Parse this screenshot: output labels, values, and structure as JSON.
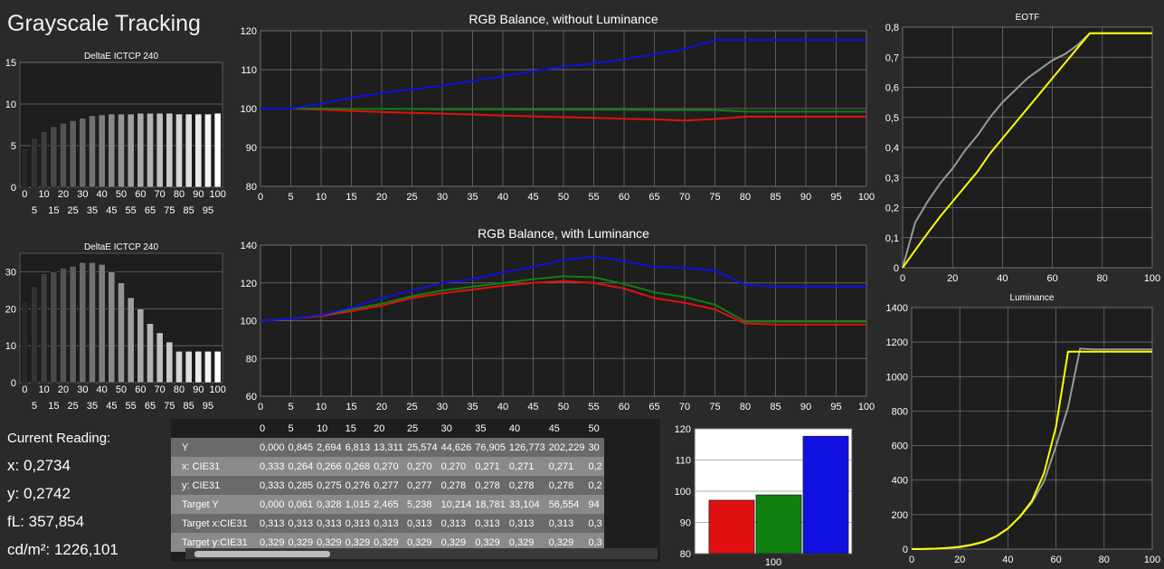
{
  "title": "Grayscale Tracking",
  "current": {
    "heading": "Current Reading:",
    "x": "x: 0,2734",
    "y": "y: 0,2742",
    "fl": "fL: 357,854",
    "cdm2": "cd/m²: 1226,101"
  },
  "colors": {
    "red": "#e01010",
    "green": "#108010",
    "blue": "#1010e0",
    "yellow": "#ffff00",
    "gray": "#9a9a9a",
    "panel": "#1e1e1e",
    "grid": "#777777"
  },
  "x_ticks": [
    "0",
    "5",
    "10",
    "15",
    "20",
    "25",
    "30",
    "35",
    "40",
    "45",
    "50",
    "55",
    "60",
    "65",
    "70",
    "75",
    "80",
    "85",
    "90",
    "95",
    "100"
  ],
  "charts": [
    {
      "id": "deltae1",
      "type": "bar",
      "title": "DeltaE ICTCP 240",
      "categories": [
        0,
        5,
        10,
        15,
        20,
        25,
        30,
        35,
        40,
        45,
        50,
        55,
        60,
        65,
        70,
        75,
        80,
        85,
        90,
        95,
        100
      ],
      "values": [
        4.7,
        5.9,
        6.7,
        7.3,
        7.7,
        8.0,
        8.3,
        8.6,
        8.7,
        8.8,
        8.8,
        8.8,
        8.9,
        8.9,
        8.9,
        8.9,
        8.8,
        8.8,
        8.8,
        8.8,
        8.9
      ],
      "ylim": [
        0,
        15
      ],
      "yticks": [
        0,
        5,
        10,
        15
      ],
      "xticks_top": [
        "0",
        "10",
        "20",
        "30",
        "40",
        "50",
        "60",
        "70",
        "80",
        "90",
        "100"
      ],
      "xticks_bottom": [
        "5",
        "15",
        "25",
        "35",
        "45",
        "55",
        "65",
        "75",
        "85",
        "95"
      ]
    },
    {
      "id": "deltae2",
      "type": "bar",
      "title": "DeltaE ICTCP 240",
      "categories": [
        0,
        5,
        10,
        15,
        20,
        25,
        30,
        35,
        40,
        45,
        50,
        55,
        60,
        65,
        70,
        75,
        80,
        85,
        90,
        95,
        100
      ],
      "values": [
        22,
        26,
        29.5,
        30,
        31,
        31.5,
        32.5,
        32.5,
        32,
        30,
        27,
        23,
        20,
        16,
        13.5,
        11,
        8.5,
        8.5,
        8.5,
        8.5,
        8.5
      ],
      "ylim": [
        0,
        35
      ],
      "yticks": [
        0,
        10,
        20,
        30
      ],
      "xticks_top": [
        "0",
        "10",
        "20",
        "30",
        "40",
        "50",
        "60",
        "70",
        "80",
        "90",
        "100"
      ],
      "xticks_bottom": [
        "5",
        "15",
        "25",
        "35",
        "45",
        "55",
        "65",
        "75",
        "85",
        "95"
      ]
    },
    {
      "id": "rgb-no-lum",
      "type": "line",
      "title": "RGB Balance, without Luminance",
      "x": [
        0,
        5,
        10,
        15,
        20,
        25,
        30,
        35,
        40,
        45,
        50,
        55,
        60,
        65,
        70,
        75,
        80,
        85,
        90,
        95,
        100
      ],
      "ylim": [
        80,
        120
      ],
      "yticks": [
        80,
        90,
        100,
        110,
        120
      ],
      "series": [
        {
          "color": "red",
          "values": [
            100,
            100,
            99.7,
            99.4,
            99.1,
            98.9,
            98.7,
            98.5,
            98.2,
            98.0,
            97.8,
            97.6,
            97.4,
            97.2,
            96.9,
            97.3,
            97.9,
            97.9,
            97.9,
            97.9,
            97.9
          ]
        },
        {
          "color": "green",
          "values": [
            100,
            100,
            100,
            99.9,
            99.9,
            99.9,
            99.8,
            99.8,
            99.8,
            99.7,
            99.7,
            99.7,
            99.7,
            99.6,
            99.6,
            99.6,
            99.2,
            99.2,
            99.2,
            99.2,
            99.2
          ]
        },
        {
          "color": "blue",
          "values": [
            100,
            100,
            101.2,
            102.8,
            104.0,
            104.9,
            105.9,
            107.1,
            108.3,
            109.6,
            110.8,
            111.6,
            112.7,
            113.9,
            115.3,
            117.6,
            117.6,
            117.6,
            117.6,
            117.6,
            117.6
          ]
        }
      ]
    },
    {
      "id": "rgb-lum",
      "type": "line",
      "title": "RGB Balance, with Luminance",
      "x": [
        0,
        5,
        10,
        15,
        20,
        25,
        30,
        35,
        40,
        45,
        50,
        55,
        60,
        65,
        70,
        75,
        80,
        85,
        90,
        95,
        100
      ],
      "ylim": [
        60,
        140
      ],
      "yticks": [
        60,
        80,
        100,
        120,
        140
      ],
      "series": [
        {
          "color": "red",
          "values": [
            100,
            101,
            102.5,
            105,
            108,
            112,
            114.5,
            116.5,
            118.5,
            120,
            121,
            120,
            117,
            112,
            109.5,
            106,
            98.5,
            98,
            98,
            98,
            98
          ]
        },
        {
          "color": "green",
          "values": [
            100,
            101,
            103,
            106,
            109,
            113,
            116,
            118,
            120,
            122,
            123.5,
            123,
            119.5,
            115,
            112.5,
            108.5,
            99.5,
            99.5,
            99.5,
            99.5,
            99.5
          ]
        },
        {
          "color": "blue",
          "values": [
            100,
            101,
            103,
            107,
            112,
            116,
            120,
            122,
            125.5,
            128.5,
            132,
            134,
            131.5,
            128.5,
            128,
            126.5,
            119,
            118,
            118,
            118,
            118
          ]
        }
      ]
    },
    {
      "id": "eotf",
      "type": "line",
      "title": "EOTF",
      "x": [
        0,
        5,
        10,
        15,
        20,
        25,
        30,
        35,
        40,
        45,
        50,
        55,
        60,
        65,
        70,
        75,
        80,
        85,
        90,
        95,
        100
      ],
      "ylim": [
        0,
        0.8
      ],
      "yticks": [
        "0",
        "0,1",
        "0,2",
        "0,3",
        "0,4",
        "0,5",
        "0,6",
        "0,7",
        "0,8"
      ],
      "xticks": [
        "0",
        "20",
        "40",
        "60",
        "80",
        "100"
      ],
      "series": [
        {
          "color": "gray",
          "values": [
            0,
            0.15,
            0.22,
            0.28,
            0.33,
            0.39,
            0.44,
            0.5,
            0.55,
            0.59,
            0.63,
            0.66,
            0.69,
            0.71,
            0.74,
            0.78,
            0.78,
            0.78,
            0.78,
            0.78,
            0.78
          ]
        },
        {
          "color": "yellow",
          "values": [
            0,
            0.058,
            0.115,
            0.17,
            0.22,
            0.27,
            0.32,
            0.38,
            0.43,
            0.48,
            0.53,
            0.58,
            0.63,
            0.68,
            0.73,
            0.78,
            0.78,
            0.78,
            0.78,
            0.78,
            0.78
          ]
        }
      ]
    },
    {
      "id": "luminance",
      "type": "line",
      "title": "Luminance",
      "x": [
        0,
        5,
        10,
        15,
        20,
        25,
        30,
        35,
        40,
        45,
        50,
        55,
        60,
        65,
        70,
        75,
        80,
        85,
        90,
        95,
        100
      ],
      "ylim": [
        0,
        1500
      ],
      "yticks": [
        0,
        200,
        400,
        600,
        800,
        1000,
        1200,
        1400
      ],
      "xticks": [
        "0",
        "20",
        "40",
        "60",
        "80",
        "100"
      ],
      "series": [
        {
          "color": "gray",
          "values": [
            0,
            1,
            3,
            8,
            16,
            28,
            48,
            80,
            130,
            200,
            290,
            420,
            640,
            880,
            1245,
            1240,
            1240,
            1240,
            1240,
            1240,
            1240
          ]
        },
        {
          "color": "yellow",
          "values": [
            0,
            0.8,
            3,
            7,
            13,
            26,
            45,
            77,
            127,
            202,
            300,
            470,
            760,
            1226,
            1226,
            1226,
            1226,
            1226,
            1226,
            1226,
            1226
          ]
        }
      ]
    },
    {
      "id": "rgb-bars",
      "type": "bar",
      "title": "",
      "categories": [
        "100"
      ],
      "series": [
        {
          "color": "red",
          "value": 97.1
        },
        {
          "color": "green",
          "value": 98.8
        },
        {
          "color": "blue",
          "value": 117.6
        }
      ],
      "ylim": [
        80,
        120
      ],
      "yticks": [
        80,
        90,
        100,
        110,
        120
      ]
    }
  ],
  "table": {
    "columns": [
      "0",
      "5",
      "10",
      "15",
      "20",
      "25",
      "30",
      "35",
      "40",
      "45",
      "50"
    ],
    "rows": [
      {
        "label": "Y",
        "values": [
          "0,000",
          "0,845",
          "2,694",
          "6,813",
          "13,311",
          "25,574",
          "44,626",
          "76,905",
          "126,773",
          "202,229",
          "30"
        ]
      },
      {
        "label": "x: CIE31",
        "values": [
          "0,333",
          "0,264",
          "0,266",
          "0,268",
          "0,270",
          "0,270",
          "0,270",
          "0,271",
          "0,271",
          "0,271",
          "0,2"
        ]
      },
      {
        "label": "y: CIE31",
        "values": [
          "0,333",
          "0,285",
          "0,275",
          "0,276",
          "0,277",
          "0,277",
          "0,278",
          "0,278",
          "0,278",
          "0,278",
          "0,2"
        ]
      },
      {
        "label": "Target Y",
        "values": [
          "0,000",
          "0,061",
          "0,328",
          "1,015",
          "2,465",
          "5,238",
          "10,214",
          "18,781",
          "33,104",
          "56,554",
          "94"
        ]
      },
      {
        "label": "Target x:CIE31",
        "values": [
          "0,313",
          "0,313",
          "0,313",
          "0,313",
          "0,313",
          "0,313",
          "0,313",
          "0,313",
          "0,313",
          "0,313",
          "0,3"
        ]
      },
      {
        "label": "Target y:CIE31",
        "values": [
          "0,329",
          "0,329",
          "0,329",
          "0,329",
          "0,329",
          "0,329",
          "0,329",
          "0,329",
          "0,329",
          "0,329",
          "0,3"
        ]
      }
    ]
  }
}
